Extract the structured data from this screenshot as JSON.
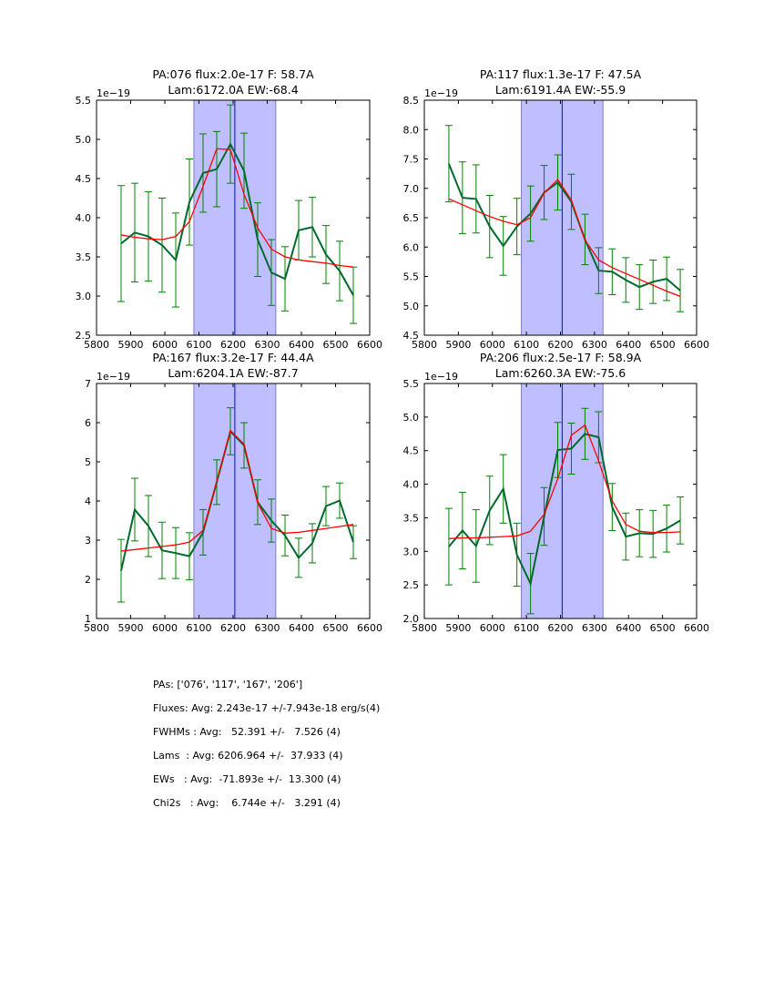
{
  "chart_data": [
    {
      "type": "line",
      "title": [
        "PA:076 flux:2.0e-17 F: 58.7A",
        "Lam:6172.0A EW:-68.4"
      ],
      "offset_label": "1e−19",
      "xlim": [
        5800,
        6600
      ],
      "ylim": [
        2.5,
        5.5
      ],
      "xticks": [
        5800,
        5900,
        6000,
        6100,
        6200,
        6300,
        6400,
        6500,
        6600
      ],
      "yticks": [
        "2.5",
        "3.0",
        "3.5",
        "4.0",
        "4.5",
        "5.0",
        "5.5"
      ],
      "band": [
        6085,
        6325
      ],
      "center": 6205,
      "x": [
        5872,
        5912,
        5952,
        5992,
        6032,
        6072,
        6112,
        6152,
        6192,
        6232,
        6272,
        6312,
        6352,
        6392,
        6432,
        6472,
        6512,
        6552
      ],
      "series": [
        {
          "name": "data",
          "color": "#006a2e",
          "values": [
            3.67,
            3.81,
            3.76,
            3.65,
            3.46,
            4.2,
            4.57,
            4.62,
            4.94,
            4.6,
            3.72,
            3.3,
            3.22,
            3.84,
            3.88,
            3.53,
            3.32,
            3.01
          ],
          "errors": [
            0.74,
            0.63,
            0.57,
            0.6,
            0.6,
            0.55,
            0.5,
            0.48,
            0.5,
            0.48,
            0.47,
            0.42,
            0.41,
            0.38,
            0.38,
            0.37,
            0.38,
            0.36
          ]
        },
        {
          "name": "fit",
          "color": "#ff0000",
          "values": [
            3.78,
            3.75,
            3.73,
            3.72,
            3.76,
            3.95,
            4.4,
            4.88,
            4.87,
            4.3,
            3.87,
            3.6,
            3.5,
            3.46,
            3.44,
            3.42,
            3.39,
            3.37
          ]
        }
      ]
    },
    {
      "type": "line",
      "title": [
        "PA:117 flux:1.3e-17 F: 47.5A",
        "Lam:6191.4A EW:-55.9"
      ],
      "offset_label": "1e−19",
      "xlim": [
        5800,
        6600
      ],
      "ylim": [
        4.5,
        8.5
      ],
      "xticks": [
        5800,
        5900,
        6000,
        6100,
        6200,
        6300,
        6400,
        6500,
        6600
      ],
      "yticks": [
        "4.5",
        "5.0",
        "5.5",
        "6.0",
        "6.5",
        "7.0",
        "7.5",
        "8.0",
        "8.5"
      ],
      "band": [
        6085,
        6325
      ],
      "center": 6205,
      "x": [
        5872,
        5912,
        5952,
        5992,
        6032,
        6072,
        6112,
        6152,
        6192,
        6232,
        6272,
        6312,
        6352,
        6392,
        6432,
        6472,
        6512,
        6552
      ],
      "series": [
        {
          "name": "data",
          "color": "#006a2e",
          "values": [
            7.42,
            6.84,
            6.82,
            6.35,
            6.02,
            6.35,
            6.57,
            6.93,
            7.1,
            6.77,
            6.13,
            5.6,
            5.58,
            5.44,
            5.32,
            5.41,
            5.46,
            5.26
          ],
          "errors": [
            0.65,
            0.61,
            0.58,
            0.53,
            0.5,
            0.48,
            0.47,
            0.46,
            0.47,
            0.47,
            0.43,
            0.39,
            0.39,
            0.38,
            0.38,
            0.37,
            0.37,
            0.36
          ]
        },
        {
          "name": "fit",
          "color": "#ff0000",
          "values": [
            6.82,
            6.72,
            6.62,
            6.52,
            6.44,
            6.38,
            6.5,
            6.92,
            7.15,
            6.8,
            6.12,
            5.78,
            5.65,
            5.55,
            5.45,
            5.35,
            5.25,
            5.16
          ]
        }
      ]
    },
    {
      "type": "line",
      "title": [
        "PA:167 flux:3.2e-17 F: 44.4A",
        "Lam:6204.1A EW:-87.7"
      ],
      "offset_label": "1e−19",
      "xlim": [
        5800,
        6600
      ],
      "ylim": [
        1,
        7
      ],
      "xticks": [
        5800,
        5900,
        6000,
        6100,
        6200,
        6300,
        6400,
        6500,
        6600
      ],
      "yticks": [
        "1",
        "2",
        "3",
        "4",
        "5",
        "6",
        "7"
      ],
      "band": [
        6085,
        6325
      ],
      "center": 6205,
      "x": [
        5872,
        5912,
        5952,
        5992,
        6032,
        6072,
        6112,
        6152,
        6192,
        6232,
        6272,
        6312,
        6352,
        6392,
        6432,
        6472,
        6512,
        6552
      ],
      "series": [
        {
          "name": "data",
          "color": "#006a2e",
          "values": [
            2.22,
            3.78,
            3.36,
            2.74,
            2.67,
            2.59,
            3.2,
            4.48,
            5.78,
            5.42,
            3.97,
            3.5,
            3.12,
            2.55,
            2.92,
            3.87,
            4.01,
            2.95
          ],
          "errors": [
            0.8,
            0.8,
            0.78,
            0.72,
            0.65,
            0.6,
            0.58,
            0.57,
            0.6,
            0.58,
            0.57,
            0.55,
            0.52,
            0.5,
            0.5,
            0.5,
            0.45,
            0.42
          ]
        },
        {
          "name": "fit",
          "color": "#ff0000",
          "values": [
            2.72,
            2.76,
            2.8,
            2.84,
            2.88,
            2.95,
            3.25,
            4.5,
            5.8,
            5.45,
            3.95,
            3.3,
            3.18,
            3.2,
            3.25,
            3.3,
            3.35,
            3.4
          ]
        }
      ]
    },
    {
      "type": "line",
      "title": [
        "PA:206 flux:2.5e-17 F: 58.9A",
        "Lam:6260.3A EW:-75.6"
      ],
      "offset_label": "1e−19",
      "xlim": [
        5800,
        6600
      ],
      "ylim": [
        2.0,
        5.5
      ],
      "xticks": [
        5800,
        5900,
        6000,
        6100,
        6200,
        6300,
        6400,
        6500,
        6600
      ],
      "yticks": [
        "2.0",
        "2.5",
        "3.0",
        "3.5",
        "4.0",
        "4.5",
        "5.0",
        "5.5"
      ],
      "band": [
        6085,
        6325
      ],
      "center": 6205,
      "x": [
        5872,
        5912,
        5952,
        5992,
        6032,
        6072,
        6112,
        6152,
        6192,
        6232,
        6272,
        6312,
        6352,
        6392,
        6432,
        6472,
        6512,
        6552
      ],
      "series": [
        {
          "name": "data",
          "color": "#006a2e",
          "values": [
            3.07,
            3.31,
            3.08,
            3.61,
            3.93,
            2.95,
            2.52,
            3.52,
            4.51,
            4.53,
            4.75,
            4.7,
            3.66,
            3.22,
            3.27,
            3.26,
            3.34,
            3.46
          ],
          "errors": [
            0.57,
            0.57,
            0.54,
            0.51,
            0.51,
            0.47,
            0.45,
            0.43,
            0.41,
            0.38,
            0.38,
            0.38,
            0.35,
            0.35,
            0.35,
            0.35,
            0.35,
            0.35
          ]
        },
        {
          "name": "fit",
          "color": "#ff0000",
          "values": [
            3.19,
            3.2,
            3.2,
            3.21,
            3.22,
            3.23,
            3.3,
            3.55,
            4.08,
            4.73,
            4.88,
            4.35,
            3.75,
            3.4,
            3.3,
            3.28,
            3.28,
            3.29
          ]
        }
      ]
    }
  ],
  "stats": [
    "PAs: ['076', '117', '167', '206']",
    "Fluxes: Avg: 2.243e-17 +/-7.943e-18 erg/s(4)",
    "FWHMs : Avg:   52.391 +/-   7.526 (4)",
    "Lams  : Avg: 6206.964 +/-  37.933 (4)",
    "EWs   : Avg:  -71.893e +/-  13.300 (4)",
    "Chi2s   : Avg:    6.744e +/-   3.291 (4)"
  ]
}
